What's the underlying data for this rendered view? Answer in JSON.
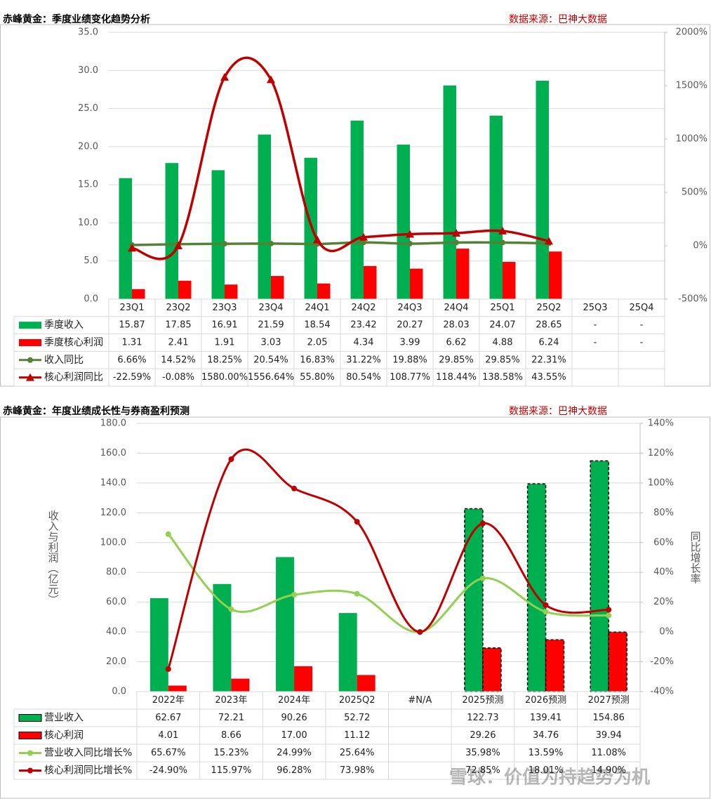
{
  "watermark": "雪球：价值为持趋势为机",
  "chart_data": [
    {
      "type": "combo",
      "title": "赤峰黄金：季度业绩变化趋势分析",
      "source": "数据来源：巴神大数据",
      "categories": [
        "23Q1",
        "23Q2",
        "23Q3",
        "23Q4",
        "24Q1",
        "24Q2",
        "24Q3",
        "24Q4",
        "25Q1",
        "25Q2",
        "25Q3",
        "25Q4"
      ],
      "ylim": [
        0,
        35
      ],
      "yticks": [
        {
          "value": 0,
          "label": "0.0"
        },
        {
          "value": 5,
          "label": "5.0"
        },
        {
          "value": 10,
          "label": "10.0"
        },
        {
          "value": 15,
          "label": "15.0"
        },
        {
          "value": 20,
          "label": "20.0"
        },
        {
          "value": 25,
          "label": "25.0"
        },
        {
          "value": 30,
          "label": "30.0"
        },
        {
          "value": 35,
          "label": "35.0"
        }
      ],
      "y2lim": [
        -500,
        2000
      ],
      "y2ticks": [
        {
          "value": -500,
          "label": "-500%"
        },
        {
          "value": 0,
          "label": "0%"
        },
        {
          "value": 500,
          "label": "500%"
        },
        {
          "value": 1000,
          "label": "1000%"
        },
        {
          "value": 1500,
          "label": "1500%"
        },
        {
          "value": 2000,
          "label": "2000%"
        }
      ],
      "grid": true,
      "series": [
        {
          "name": "季度收入",
          "type": "bar",
          "color": "#00b050",
          "values": [
            15.87,
            17.85,
            16.91,
            21.59,
            18.54,
            23.42,
            20.27,
            28.03,
            24.07,
            28.65,
            null,
            null
          ],
          "value_labels": [
            "15.87",
            "17.85",
            "16.91",
            "21.59",
            "18.54",
            "23.42",
            "20.27",
            "28.03",
            "24.07",
            "28.65",
            "-",
            "-"
          ]
        },
        {
          "name": "季度核心利润",
          "type": "bar",
          "color": "#ff0000",
          "values": [
            1.31,
            2.41,
            1.91,
            3.03,
            2.05,
            4.34,
            3.99,
            6.62,
            4.88,
            6.24,
            null,
            null
          ],
          "value_labels": [
            "1.31",
            "2.41",
            "1.91",
            "3.03",
            "2.05",
            "4.34",
            "3.99",
            "6.62",
            "4.88",
            "6.24",
            "-",
            "-"
          ]
        },
        {
          "name": "收入同比",
          "type": "line",
          "axis": "y2",
          "marker": "circle",
          "color": "#548235",
          "values": [
            6.66,
            14.52,
            18.25,
            20.54,
            16.83,
            31.22,
            19.88,
            29.85,
            29.85,
            22.31,
            null,
            null
          ],
          "value_labels": [
            "6.66%",
            "14.52%",
            "18.25%",
            "20.54%",
            "16.83%",
            "31.22%",
            "19.88%",
            "29.85%",
            "29.85%",
            "22.31%",
            null,
            null
          ]
        },
        {
          "name": "核心利润同比",
          "type": "line",
          "axis": "y2",
          "marker": "triangle",
          "color": "#c00000",
          "values": [
            -22.59,
            -0.08,
            1580.0,
            1556.64,
            55.8,
            80.54,
            108.77,
            118.44,
            138.58,
            43.55,
            null,
            null
          ],
          "value_labels": [
            "-22.59%",
            "-0.08%",
            "1580.00%",
            "1556.64%",
            "55.80%",
            "80.54%",
            "108.77%",
            "118.44%",
            "138.58%",
            "43.55%",
            null,
            null
          ]
        }
      ]
    },
    {
      "type": "combo",
      "title": "赤峰黄金：年度业绩成长性与券商盈利预测",
      "source": "数据来源：巴神大数据",
      "ylabel": "收入与利润（亿元）",
      "y2label": "同比增长率",
      "categories": [
        "2022年",
        "2023年",
        "2024年",
        "2025Q2",
        "#N/A",
        "2025预测",
        "2026预测",
        "2027预测"
      ],
      "bar_style": [
        "solid",
        "solid",
        "solid",
        "solid",
        "solid",
        "dashed",
        "dashed",
        "dashed"
      ],
      "ylim": [
        0,
        180
      ],
      "yticks": [
        {
          "value": 0,
          "label": "0.0"
        },
        {
          "value": 20,
          "label": "20.0"
        },
        {
          "value": 40,
          "label": "40.0"
        },
        {
          "value": 60,
          "label": "60.0"
        },
        {
          "value": 80,
          "label": "80.0"
        },
        {
          "value": 100,
          "label": "100.0"
        },
        {
          "value": 120,
          "label": "120.0"
        },
        {
          "value": 140,
          "label": "140.0"
        },
        {
          "value": 160,
          "label": "160.0"
        },
        {
          "value": 180,
          "label": "180.0"
        }
      ],
      "y2lim": [
        -40,
        140
      ],
      "y2ticks": [
        {
          "value": -40,
          "label": "-40%"
        },
        {
          "value": -20,
          "label": "-20%"
        },
        {
          "value": 0,
          "label": "0%"
        },
        {
          "value": 20,
          "label": "20%"
        },
        {
          "value": 40,
          "label": "40%"
        },
        {
          "value": 60,
          "label": "60%"
        },
        {
          "value": 80,
          "label": "80%"
        },
        {
          "value": 100,
          "label": "100%"
        },
        {
          "value": 120,
          "label": "120%"
        },
        {
          "value": 140,
          "label": "140%"
        }
      ],
      "grid": true,
      "series": [
        {
          "name": "营业收入",
          "type": "bar",
          "color": "#00b050",
          "values": [
            62.67,
            72.21,
            90.26,
            52.72,
            null,
            122.73,
            139.41,
            154.86
          ],
          "value_labels": [
            "62.67",
            "72.21",
            "90.26",
            "52.72",
            null,
            "122.73",
            "139.41",
            "154.86"
          ]
        },
        {
          "name": "核心利润",
          "type": "bar",
          "color": "#ff0000",
          "values": [
            4.01,
            8.66,
            17.0,
            11.12,
            null,
            29.26,
            34.76,
            39.94
          ],
          "value_labels": [
            "4.01",
            "8.66",
            "17.00",
            "11.12",
            null,
            "29.26",
            "34.76",
            "39.94"
          ]
        },
        {
          "name": "营业收入同比增长%",
          "type": "line",
          "axis": "y2",
          "marker": "circle",
          "color": "#92d050",
          "values": [
            65.67,
            15.23,
            24.99,
            25.64,
            0,
            35.98,
            13.59,
            11.08
          ],
          "value_labels": [
            "65.67%",
            "15.23%",
            "24.99%",
            "25.64%",
            null,
            "35.98%",
            "13.59%",
            "11.08%"
          ]
        },
        {
          "name": "核心利润同比增长%",
          "type": "line",
          "axis": "y2",
          "marker": "circle",
          "color": "#c00000",
          "values": [
            -24.9,
            115.97,
            96.28,
            73.98,
            0,
            72.85,
            18.01,
            14.9
          ],
          "value_labels": [
            "-24.90%",
            "115.97%",
            "96.28%",
            "73.98%",
            null,
            "72.85%",
            "18.01%",
            "14.90%"
          ]
        }
      ]
    }
  ]
}
